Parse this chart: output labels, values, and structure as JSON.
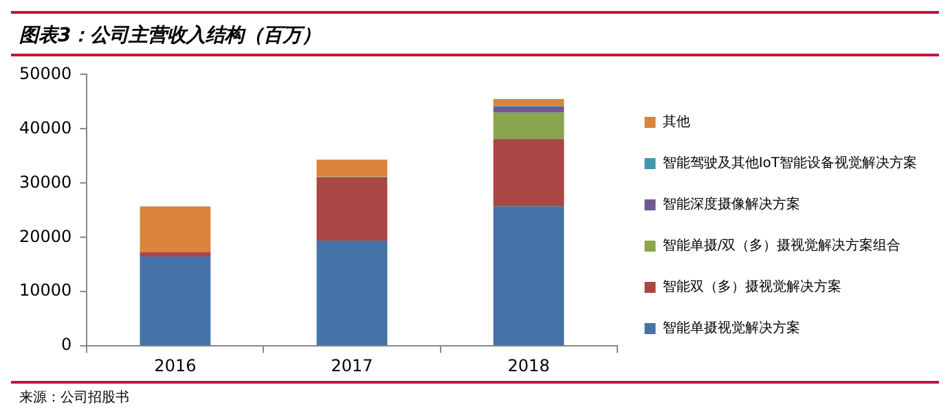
{
  "chart_data": {
    "type": "bar",
    "title": "图表3：公司主营收入结构（百万）",
    "categories": [
      "2016",
      "2017",
      "2018"
    ],
    "stacked": true,
    "series": [
      {
        "name": "智能单摄视觉解决方案",
        "color": "#4572a7",
        "values": [
          16500,
          19400,
          25700
        ]
      },
      {
        "name": "智能双（多）摄视觉解决方案",
        "color": "#aa4643",
        "values": [
          800,
          11700,
          12400
        ]
      },
      {
        "name": "智能单摄/双（多）摄视觉解决方案组合",
        "color": "#89a54e",
        "values": [
          0,
          100,
          4900
        ]
      },
      {
        "name": "智能深度摄像解决方案",
        "color": "#71588f",
        "values": [
          0,
          0,
          1100
        ]
      },
      {
        "name": "智能驾驶及其他IoT智能设备视觉解决方案",
        "color": "#4198af",
        "values": [
          0,
          0,
          100
        ]
      },
      {
        "name": "其他",
        "color": "#db843d",
        "values": [
          8400,
          3100,
          1300
        ]
      }
    ],
    "ylim": [
      0,
      50000
    ],
    "yticks": [
      0,
      10000,
      20000,
      30000,
      40000,
      50000
    ],
    "grid": false,
    "legend": "right",
    "annotations": [
      "来源：公司招股书"
    ]
  }
}
